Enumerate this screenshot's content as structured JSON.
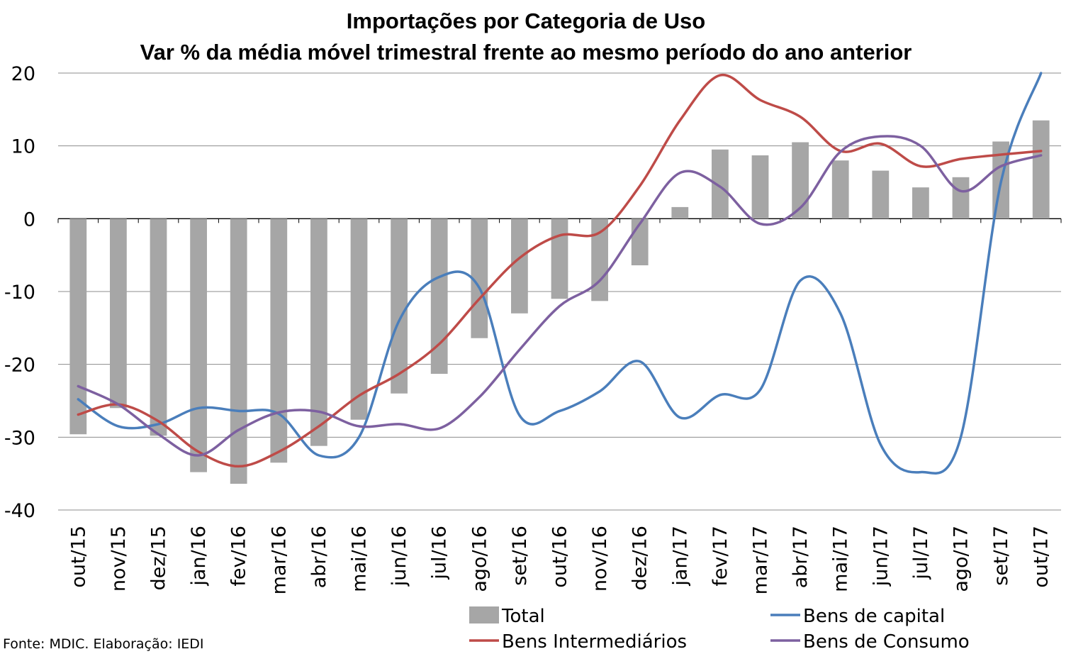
{
  "chart_data": {
    "type": "bar",
    "title": "Importações por Categoria de Uso",
    "subtitle": "Var % da média móvel trimestral frente ao mesmo período do ano anterior",
    "xlabel": "",
    "ylabel": "",
    "ylim": [
      -40,
      20
    ],
    "yticks": [
      "20",
      "10",
      "0",
      "-10",
      "-20",
      "-30",
      "-40"
    ],
    "grid": true,
    "legend_position": "bottom",
    "categories": [
      "out/15",
      "nov/15",
      "dez/15",
      "jan/16",
      "fev/16",
      "mar/16",
      "abr/16",
      "mai/16",
      "jun/16",
      "jul/16",
      "ago/16",
      "set/16",
      "out/16",
      "nov/16",
      "dez/16",
      "jan/17",
      "fev/17",
      "mar/17",
      "abr/17",
      "mai/17",
      "jun/17",
      "jul/17",
      "ago/17",
      "set/17",
      "out/17"
    ],
    "series": [
      {
        "name": "Total",
        "kind": "bar",
        "color": "#a6a6a6",
        "values": [
          -29.6,
          -26.0,
          -29.8,
          -34.8,
          -36.4,
          -33.5,
          -31.2,
          -27.6,
          -24.0,
          -21.3,
          -16.4,
          -13.0,
          -11.0,
          -11.3,
          -6.4,
          1.6,
          9.5,
          8.7,
          10.5,
          8.0,
          6.6,
          4.3,
          5.7,
          10.6,
          13.5
        ]
      },
      {
        "name": "Bens de capital",
        "kind": "line",
        "color": "#4a7ebb",
        "values": [
          -24.8,
          -28.5,
          -28.2,
          -26.0,
          -26.4,
          -26.8,
          -32.5,
          -30.0,
          -14.0,
          -8.0,
          -9.5,
          -27.0,
          -26.4,
          -23.7,
          -19.6,
          -27.3,
          -24.2,
          -23.5,
          -8.5,
          -13.0,
          -31.0,
          -34.8,
          -30.0,
          5.0,
          20.0
        ]
      },
      {
        "name": "Bens Intermediários",
        "kind": "line",
        "color": "#be4b48",
        "values": [
          -26.9,
          -25.5,
          -27.8,
          -32.0,
          -34.0,
          -32.0,
          -28.5,
          -24.3,
          -21.3,
          -17.2,
          -11.0,
          -5.4,
          -2.3,
          -1.9,
          4.5,
          13.5,
          19.7,
          16.3,
          14.0,
          9.3,
          10.3,
          7.2,
          8.2,
          8.8,
          9.3
        ]
      },
      {
        "name": "Bens de Consumo",
        "kind": "line",
        "color": "#7d60a0",
        "values": [
          -23.0,
          -25.5,
          -29.6,
          -32.5,
          -29.0,
          -26.6,
          -26.5,
          -28.5,
          -28.2,
          -28.8,
          -24.5,
          -18.0,
          -12.0,
          -8.5,
          -0.7,
          6.3,
          4.4,
          -0.7,
          1.5,
          9.2,
          11.3,
          10.0,
          3.8,
          7.2,
          8.7
        ]
      }
    ],
    "source": "Fonte: MDIC. Elaboração: IEDI"
  }
}
